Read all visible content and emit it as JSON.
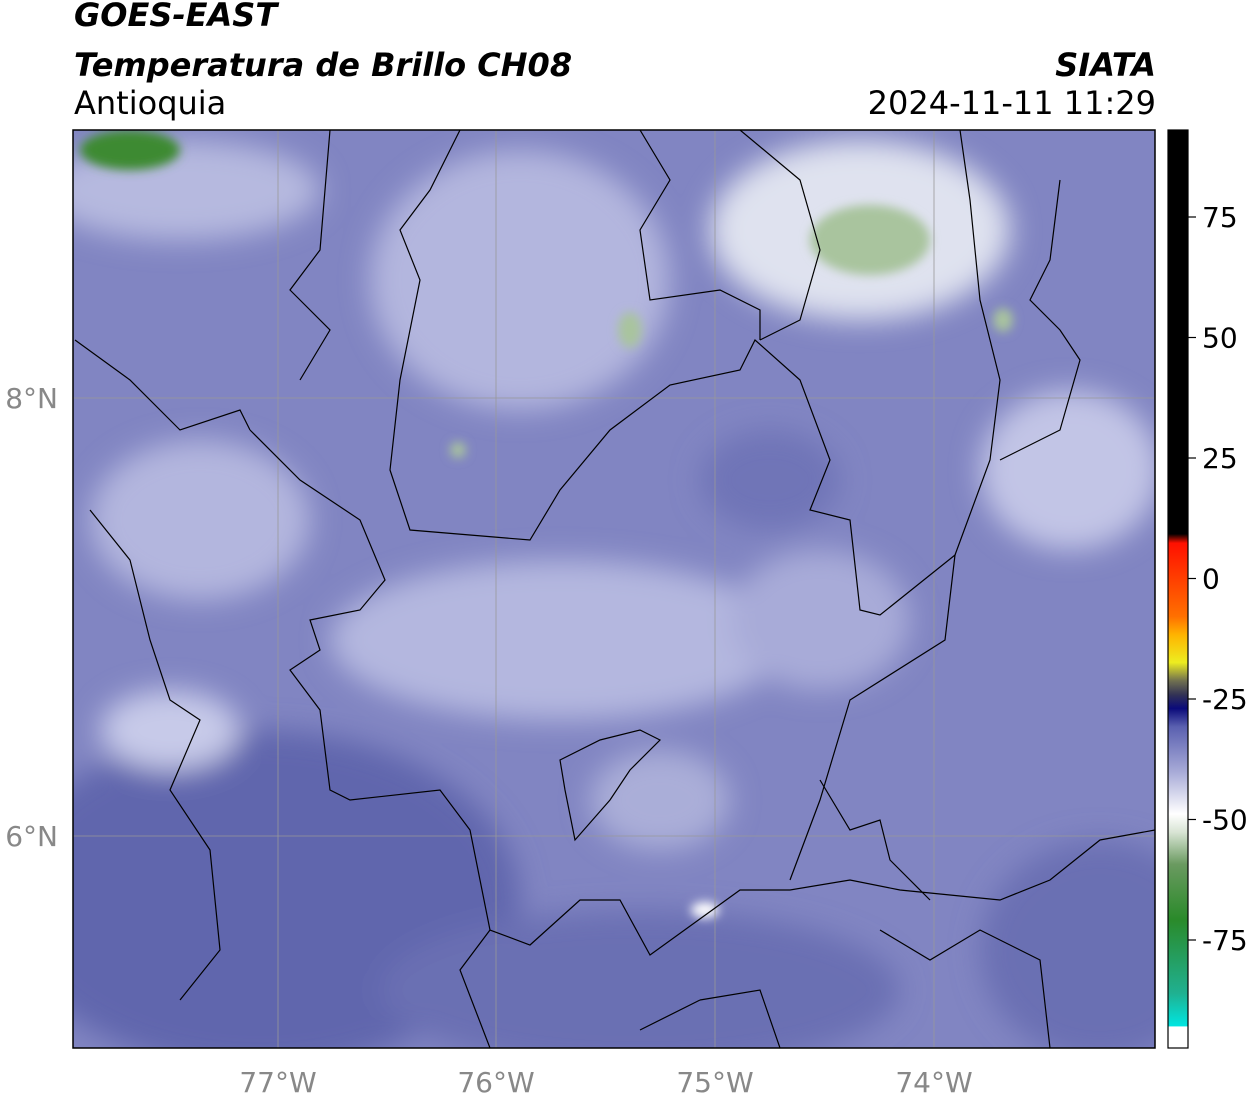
{
  "header": {
    "satellite": "GOES-EAST",
    "product": "Temperatura de Brillo CH08",
    "region": "Antioquia",
    "organization": "SIATA",
    "datetime": "2024-11-11 11:29"
  },
  "map": {
    "longitude_labels": [
      "77°W",
      "76°W",
      "75°W",
      "74°W"
    ],
    "latitude_labels": [
      "8°N",
      "6°N"
    ]
  },
  "colorbar": {
    "ticks": [
      75,
      50,
      25,
      0,
      -25,
      -50,
      -75
    ]
  }
}
